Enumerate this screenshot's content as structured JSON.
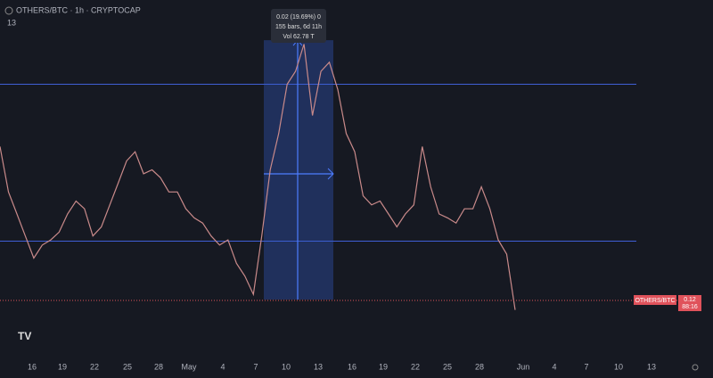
{
  "header": {
    "symbol": "OTHERS/BTC · 1h · CRYPTOCAP",
    "indicator": "13"
  },
  "chart_data": {
    "type": "line",
    "color": "#c98a8a",
    "values": [
      0.1134,
      0.1099,
      0.1082,
      0.1065,
      0.1048,
      0.1058,
      0.1062,
      0.1068,
      0.1082,
      0.1092,
      0.1086,
      0.1065,
      0.1072,
      0.1089,
      0.1106,
      0.1123,
      0.113,
      0.1113,
      0.1116,
      0.111,
      0.1099,
      0.1099,
      0.1086,
      0.1079,
      0.1075,
      0.1065,
      0.1058,
      0.1062,
      0.1044,
      0.1034,
      0.102,
      0.1065,
      0.1116,
      0.1144,
      0.1182,
      0.1192,
      0.1213,
      0.1158,
      0.1192,
      0.1199,
      0.1178,
      0.1144,
      0.113,
      0.1096,
      0.1089,
      0.1092,
      0.1082,
      0.1072,
      0.1082,
      0.1089,
      0.1134,
      0.1103,
      0.1082,
      0.1079,
      0.1075,
      0.1086,
      0.1086,
      0.1103,
      0.1086,
      0.1062,
      0.1051,
      0.1008
    ],
    "ylim": [
      0.0972,
      0.1247
    ],
    "levels": [
      0.1182,
      0.1061
    ],
    "measure": {
      "low": 0.1016,
      "high": 0.1216,
      "lines": [
        "0.02 (19.69%) 0",
        "155 bars, 6d 11h",
        "Vol 62.78 T"
      ]
    },
    "price_label": {
      "symbol": "OTHERS/BTC",
      "price": "0.12",
      "countdown": "88:16"
    },
    "x_labels": [
      "16",
      "19",
      "22",
      "25",
      "28",
      "May",
      "4",
      "7",
      "10",
      "13",
      "16",
      "19",
      "22",
      "25",
      "28",
      "Jun",
      "4",
      "7",
      "10",
      "13"
    ]
  }
}
